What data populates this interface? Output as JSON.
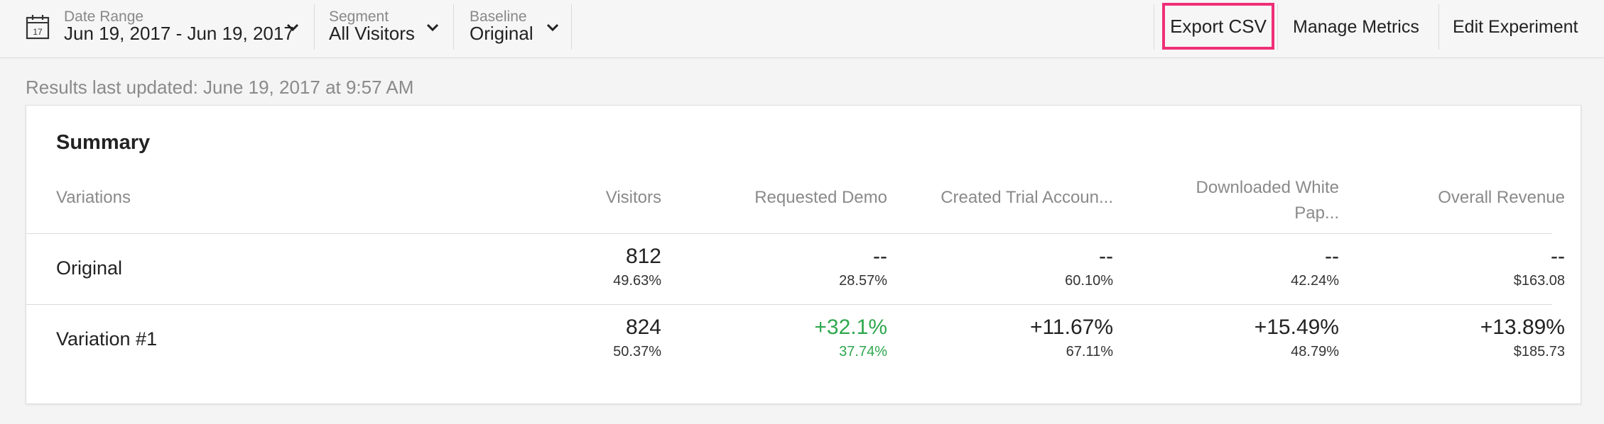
{
  "toolbar": {
    "date_range": {
      "label": "Date Range",
      "value": "Jun 19, 2017 - Jun 19, 2017",
      "calendar_day": "17"
    },
    "segment": {
      "label": "Segment",
      "value": "All Visitors"
    },
    "baseline": {
      "label": "Baseline",
      "value": "Original"
    },
    "export_csv": "Export CSV",
    "manage_metrics": "Manage Metrics",
    "edit_experiment": "Edit Experiment",
    "highlight_color": "#ef2f78"
  },
  "results_updated": "Results last updated: June 19, 2017 at 9:57 AM",
  "summary": {
    "title": "Summary",
    "columns": {
      "variations": "Variations",
      "visitors": "Visitors",
      "requested_demo": "Requested Demo",
      "created_trial": "Created Trial Accoun...",
      "downloaded_white_line1": "Downloaded White",
      "downloaded_white_line2": "Pap...",
      "overall_revenue": "Overall Revenue"
    },
    "rows": [
      {
        "name": "Original",
        "visitors": {
          "main": "812",
          "sub": "49.63%"
        },
        "requested_demo": {
          "main": "--",
          "sub": "28.57%"
        },
        "created_trial": {
          "main": "--",
          "sub": "60.10%"
        },
        "downloaded_white": {
          "main": "--",
          "sub": "42.24%"
        },
        "overall_revenue": {
          "main": "--",
          "sub": "$163.08"
        }
      },
      {
        "name": "Variation #1",
        "visitors": {
          "main": "824",
          "sub": "50.37%"
        },
        "requested_demo": {
          "main": "+32.1%",
          "sub": "37.74%"
        },
        "created_trial": {
          "main": "+11.67%",
          "sub": "67.11%"
        },
        "downloaded_white": {
          "main": "+15.49%",
          "sub": "48.79%"
        },
        "overall_revenue": {
          "main": "+13.89%",
          "sub": "$185.73"
        }
      }
    ],
    "positive_color": "#2fa84f"
  }
}
